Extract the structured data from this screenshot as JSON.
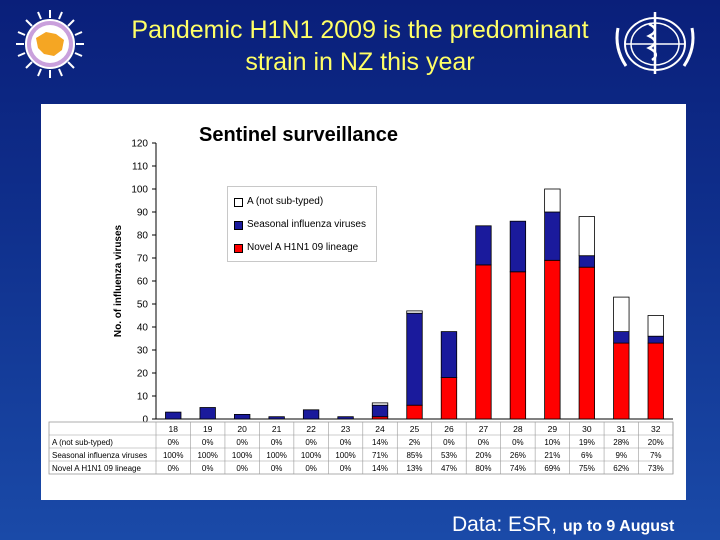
{
  "slide": {
    "title": "Pandemic H1N1 2009 is the predominant strain in NZ this year",
    "footer_source": "Data: ESR,",
    "footer_period": "up to 9 August"
  },
  "colors": {
    "background": "#0f2f8c",
    "title": "#ffff66",
    "novel": "#ff0000",
    "seasonal": "#1a1a9c",
    "not_subtyped": "#ffffff"
  },
  "chart_data": {
    "type": "bar",
    "stacked": true,
    "title": "Sentinel surveillance",
    "ylabel": "No. of influenza viruses",
    "xlabel": "",
    "ylim": [
      0,
      120
    ],
    "yticks": [
      0,
      10,
      20,
      30,
      40,
      50,
      60,
      70,
      80,
      90,
      100,
      110,
      120
    ],
    "grid": false,
    "legend_position": "top-left",
    "categories": [
      "18",
      "19",
      "20",
      "21",
      "22",
      "23",
      "24",
      "25",
      "26",
      "27",
      "28",
      "29",
      "30",
      "31",
      "32"
    ],
    "series": [
      {
        "name": "Novel A H1N1 09 lineage",
        "color": "#ff0000",
        "values": [
          0,
          0,
          0,
          0,
          0,
          0,
          1,
          6,
          18,
          67,
          64,
          69,
          66,
          33,
          33
        ]
      },
      {
        "name": "Seasonal influenza viruses",
        "color": "#1a1a9c",
        "values": [
          3,
          5,
          2,
          1,
          4,
          1,
          5,
          40,
          20,
          17,
          22,
          21,
          5,
          5,
          3
        ]
      },
      {
        "name": "A (not sub-typed)",
        "color": "#ffffff",
        "values": [
          0,
          0,
          0,
          0,
          0,
          0,
          1,
          1,
          0,
          0,
          0,
          10,
          17,
          15,
          9
        ]
      }
    ],
    "table": {
      "rows": [
        {
          "label": "A (not sub-typed)",
          "values": [
            "0%",
            "0%",
            "0%",
            "0%",
            "0%",
            "0%",
            "14%",
            "2%",
            "0%",
            "0%",
            "0%",
            "10%",
            "19%",
            "28%",
            "20%"
          ]
        },
        {
          "label": "Seasonal influenza viruses",
          "values": [
            "100%",
            "100%",
            "100%",
            "100%",
            "100%",
            "100%",
            "71%",
            "85%",
            "53%",
            "20%",
            "26%",
            "21%",
            "6%",
            "9%",
            "7%"
          ]
        },
        {
          "label": "Novel A H1N1 09 lineage",
          "values": [
            "0%",
            "0%",
            "0%",
            "0%",
            "0%",
            "0%",
            "14%",
            "13%",
            "47%",
            "80%",
            "74%",
            "69%",
            "75%",
            "62%",
            "73%"
          ]
        }
      ]
    }
  }
}
